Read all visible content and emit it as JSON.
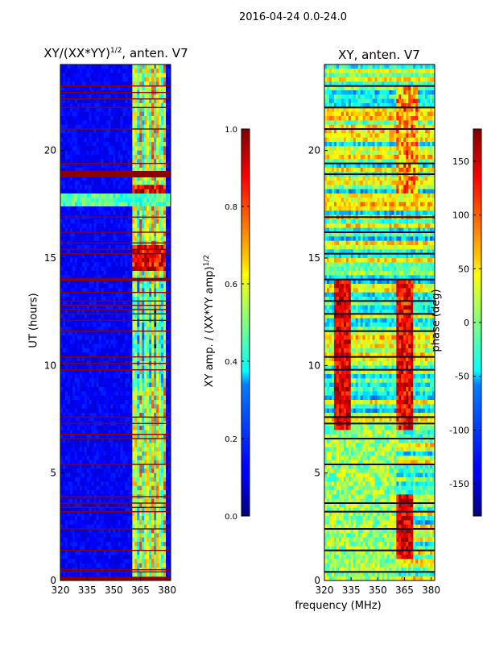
{
  "figure": {
    "suptitle": "2016-04-24 0.0-24.0",
    "xlabel": "frequency (MHz)"
  },
  "chart_data": [
    {
      "type": "heatmap",
      "title_prefix": "XY/(XX*YY)",
      "title_exponent": "1/2",
      "title_suffix": ", anten. V7",
      "xlabel": "frequency (MHz)",
      "ylabel": "UT (hours)",
      "xlim": [
        320,
        382
      ],
      "ylim": [
        0,
        24
      ],
      "xticks": [
        320,
        335,
        350,
        365,
        380
      ],
      "yticks": [
        0,
        5,
        10,
        15,
        20
      ],
      "colormap": "jet",
      "colorbar": {
        "label_prefix": "XY amp. / (XX*YY amp)",
        "label_exponent": "1/2",
        "range": [
          0.0,
          1.0
        ],
        "ticks": [
          "0.0",
          "0.2",
          "0.4",
          "0.6",
          "0.8",
          "1.0"
        ]
      },
      "flagged_rows_ut": [
        0.1,
        18.9,
        14.0,
        0.4,
        0.5,
        1.4,
        2.4,
        3.2,
        3.4,
        3.6,
        3.9,
        5.4,
        6.6,
        6.8,
        7.3,
        7.6,
        9.8,
        10.1,
        10.4,
        11.6,
        12.1,
        12.4,
        12.6,
        12.8,
        13.0,
        13.4,
        15.2,
        15.4,
        15.7,
        16.2,
        16.9,
        19.4,
        21.0,
        22.0,
        22.4,
        22.7,
        23.0
      ],
      "notable": "High normalized amplitude in the 363-378 MHz band, strongest near 15 h and 18 h UT"
    },
    {
      "type": "heatmap",
      "title": "XY, anten. V7",
      "xlabel": "frequency (MHz)",
      "ylabel": "",
      "xlim": [
        320,
        382
      ],
      "ylim": [
        0,
        24
      ],
      "xticks": [
        320,
        335,
        350,
        365,
        380
      ],
      "yticks": [
        0,
        5,
        10,
        15,
        20
      ],
      "colormap": "jet",
      "colorbar": {
        "label": "phase (deg)",
        "range": [
          -180,
          180
        ],
        "ticks": [
          "-150",
          "-100",
          "-50",
          "0",
          "50",
          "100",
          "150"
        ]
      },
      "notable": "Phase shows striped horizontal banding; warm phase regions near 325-335 MHz for 8-14 h and 360-370 MHz for 1-4 h UT"
    }
  ]
}
